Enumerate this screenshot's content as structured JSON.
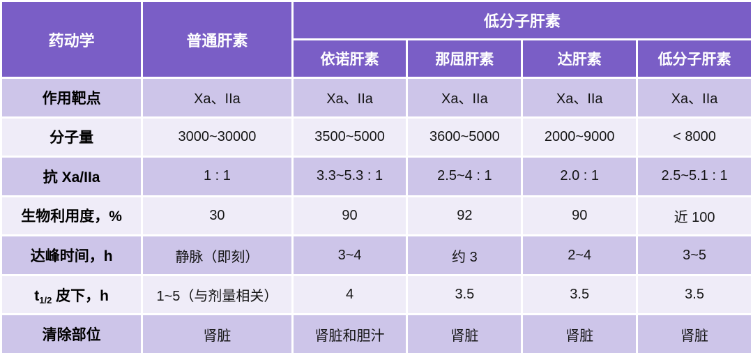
{
  "colors": {
    "header_bg": "#7a5ec6",
    "row_dark_bg": "#cdc5e9",
    "row_light_bg": "#efecf8",
    "grid": "#ffffff",
    "header_text": "#ffffff",
    "body_text": "#141414"
  },
  "table": {
    "corner_label": "药动学",
    "col_ufh": "普通肝素",
    "group_lmwh": "低分子肝素",
    "sub_cols": [
      "依诺肝素",
      "那屈肝素",
      "达肝素",
      "低分子肝素"
    ],
    "rows": [
      {
        "label": "作用靶点",
        "values": [
          "Xa、IIa",
          "Xa、IIa",
          "Xa、IIa",
          "Xa、IIa",
          "Xa、IIa"
        ]
      },
      {
        "label": "分子量",
        "values": [
          "3000~30000",
          "3500~5000",
          "3600~5000",
          "2000~9000",
          "< 8000"
        ]
      },
      {
        "label": "抗 Xa/IIa",
        "values": [
          "1 : 1",
          "3.3~5.3 : 1",
          "2.5~4 : 1",
          "2.0 : 1",
          "2.5~5.1 : 1"
        ]
      },
      {
        "label": "生物利用度，%",
        "values": [
          "30",
          "90",
          "92",
          "90",
          "近 100"
        ]
      },
      {
        "label": "达峰时间，h",
        "values": [
          "静脉（即刻）",
          "3~4",
          "约 3",
          "2~4",
          "3~5"
        ]
      },
      {
        "label_prefix": "t",
        "label_sub": "1/2",
        "label_suffix": " 皮下，h",
        "values": [
          "1~5（与剂量相关）",
          "4",
          "3.5",
          "3.5",
          "3.5"
        ]
      },
      {
        "label": "清除部位",
        "values": [
          "肾脏",
          "肾脏和胆汁",
          "肾脏",
          "肾脏",
          "肾脏"
        ]
      }
    ]
  }
}
